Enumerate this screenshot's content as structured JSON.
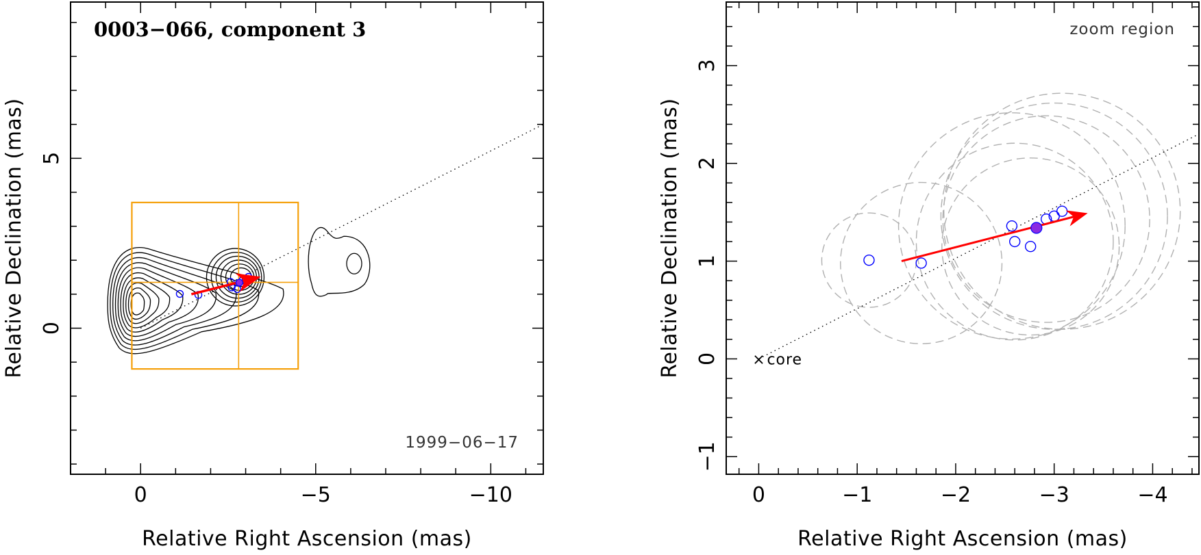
{
  "chart_data": [
    {
      "type": "scatter",
      "panel": "left",
      "title": "0003−066, component 3",
      "epoch": "1999−06−17",
      "xlabel": "Relative Right Ascension (mas)",
      "ylabel": "Relative Declination (mas)",
      "xlim": [
        2.0,
        -11.5
      ],
      "ylim": [
        -4.3,
        9.6
      ],
      "xticks": [
        {
          "v": 0,
          "label": "0"
        },
        {
          "v": -5,
          "label": "−5"
        },
        {
          "v": -10,
          "label": "−10"
        }
      ],
      "yticks": [
        {
          "v": 0,
          "label": "0"
        },
        {
          "v": 5,
          "label": "5"
        }
      ],
      "grid": false,
      "jet_direction_line": {
        "x": [
          0,
          -11.5
        ],
        "y": [
          0,
          6.0
        ],
        "style": "dotted"
      },
      "zoom_box": {
        "x": [
          0.25,
          -4.5
        ],
        "y": [
          -1.2,
          3.7
        ],
        "crosshair": {
          "x": -2.8,
          "y": 1.35
        },
        "color": "#f5a00a"
      },
      "velocity_arrow": {
        "x": [
          -1.45,
          -3.3
        ],
        "y": [
          1.0,
          1.48
        ],
        "color": "#ff0000"
      },
      "component_positions": {
        "x": [
          -1.12,
          -1.65,
          -2.57,
          -2.6,
          -2.76,
          -2.92,
          -3.0,
          -3.08
        ],
        "y": [
          1.01,
          0.98,
          1.36,
          1.2,
          1.15,
          1.43,
          1.46,
          1.51
        ]
      },
      "highlight_position": {
        "x": -2.82,
        "y": 1.34
      },
      "contours": {
        "description_free": true,
        "core_center": [
          0.1,
          0.7
        ],
        "core_levels": 10,
        "jet_levels": 6,
        "outer_blob_center": [
          -6.1,
          1.9
        ]
      }
    },
    {
      "type": "scatter",
      "panel": "right",
      "title": "zoom region",
      "xlabel": "Relative Right Ascension (mas)",
      "ylabel": "Relative Declination (mas)",
      "xlim": [
        0.33,
        -4.47
      ],
      "ylim": [
        -1.18,
        3.65
      ],
      "xticks": [
        {
          "v": 0,
          "label": "0"
        },
        {
          "v": -1,
          "label": "−1"
        },
        {
          "v": -2,
          "label": "−2"
        },
        {
          "v": -3,
          "label": "−3"
        },
        {
          "v": -4,
          "label": "−4"
        }
      ],
      "yticks": [
        {
          "v": -1,
          "label": "−1"
        },
        {
          "v": 0,
          "label": "0"
        },
        {
          "v": 1,
          "label": "1"
        },
        {
          "v": 2,
          "label": "2"
        },
        {
          "v": 3,
          "label": "3"
        }
      ],
      "grid": false,
      "core_marker": {
        "x": 0,
        "y": 0,
        "symbol": "×",
        "label": "core"
      },
      "jet_direction_line": {
        "x": [
          0,
          -4.47
        ],
        "y": [
          0,
          2.3
        ],
        "style": "dotted"
      },
      "velocity_arrow": {
        "x": [
          -1.45,
          -3.3
        ],
        "y": [
          1.0,
          1.48
        ],
        "color": "#ff0000"
      },
      "component_positions": {
        "x": [
          -1.12,
          -1.65,
          -2.57,
          -2.6,
          -2.76,
          -2.92,
          -3.0,
          -3.08
        ],
        "y": [
          1.01,
          0.98,
          1.36,
          1.2,
          1.15,
          1.43,
          1.46,
          1.51
        ]
      },
      "highlight_position": {
        "x": -2.82,
        "y": 1.34
      },
      "component_size_circles": {
        "cx": [
          -1.12,
          -1.65,
          -2.57,
          -2.6,
          -2.76,
          -2.92,
          -3.0,
          -3.08
        ],
        "cy": [
          1.01,
          0.98,
          1.36,
          1.2,
          1.15,
          1.43,
          1.46,
          1.51
        ],
        "r": [
          0.48,
          0.82,
          1.15,
          1.0,
          0.9,
          1.05,
          1.15,
          1.2
        ],
        "style": "dashed",
        "color": "#b0b0b0"
      },
      "marker_color": "#0000ff",
      "highlight_color": "#8a2be2"
    }
  ]
}
